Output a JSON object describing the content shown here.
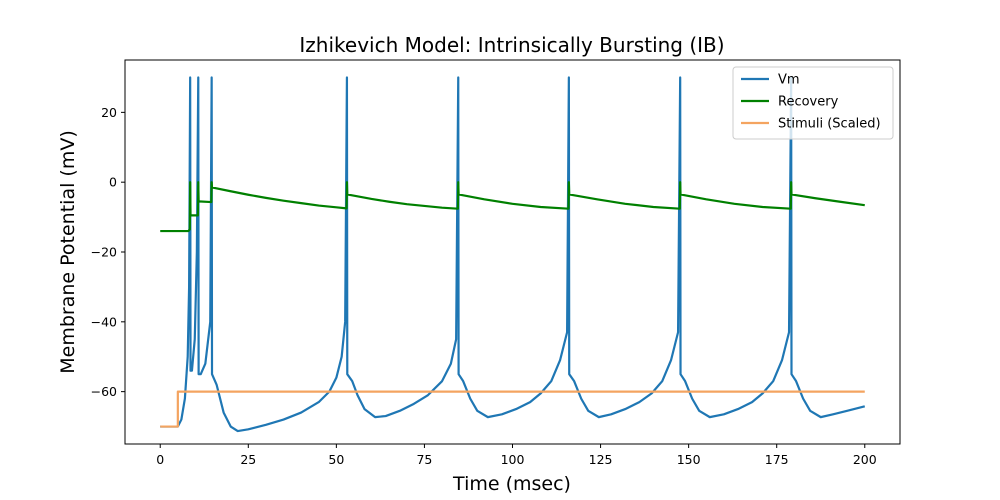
{
  "chart_data": {
    "type": "line",
    "title": "Izhikevich Model: Intrinsically Bursting (IB)",
    "xlabel": "Time (msec)",
    "ylabel": "Membrane Potential (mV)",
    "xlim": [
      -10,
      210
    ],
    "ylim": [
      -75,
      35
    ],
    "xticks": [
      0,
      25,
      50,
      75,
      100,
      125,
      150,
      175,
      200
    ],
    "yticks": [
      -60,
      -40,
      -20,
      0,
      20
    ],
    "grid": false,
    "legend_position": "top-right",
    "series": [
      {
        "name": "Vm",
        "color": "#1f77b4",
        "points": [
          [
            0,
            -70
          ],
          [
            5,
            -70
          ],
          [
            6,
            -68
          ],
          [
            7,
            -62
          ],
          [
            7.8,
            -50
          ],
          [
            8.2,
            -30
          ],
          [
            8.5,
            30
          ],
          [
            8.6,
            -54
          ],
          [
            9,
            -54
          ],
          [
            9.8,
            -45
          ],
          [
            10.4,
            -20
          ],
          [
            10.8,
            30
          ],
          [
            10.9,
            -55
          ],
          [
            11.5,
            -55
          ],
          [
            12.8,
            -52
          ],
          [
            14.2,
            -40
          ],
          [
            14.6,
            30
          ],
          [
            14.7,
            -55
          ],
          [
            16,
            -58
          ],
          [
            18,
            -66
          ],
          [
            20,
            -70
          ],
          [
            22,
            -71.3
          ],
          [
            25,
            -70.8
          ],
          [
            30,
            -69.5
          ],
          [
            35,
            -68
          ],
          [
            40,
            -66
          ],
          [
            45,
            -63
          ],
          [
            48,
            -60
          ],
          [
            50,
            -56
          ],
          [
            51.5,
            -50
          ],
          [
            52.5,
            -40
          ],
          [
            53,
            30
          ],
          [
            53.1,
            -55
          ],
          [
            54.5,
            -57
          ],
          [
            56,
            -61
          ],
          [
            58,
            -65
          ],
          [
            61,
            -67.3
          ],
          [
            64,
            -67
          ],
          [
            68,
            -65.5
          ],
          [
            72,
            -63.5
          ],
          [
            76,
            -61
          ],
          [
            80,
            -57
          ],
          [
            82.5,
            -52
          ],
          [
            84,
            -45
          ],
          [
            84.6,
            30
          ],
          [
            84.7,
            -55
          ],
          [
            86,
            -57
          ],
          [
            88,
            -62
          ],
          [
            90,
            -65.5
          ],
          [
            93,
            -67.3
          ],
          [
            97,
            -66.5
          ],
          [
            101,
            -65
          ],
          [
            105,
            -63
          ],
          [
            108,
            -60.5
          ],
          [
            111,
            -57
          ],
          [
            113.5,
            -51
          ],
          [
            115.5,
            -43
          ],
          [
            116,
            30
          ],
          [
            116.1,
            -55
          ],
          [
            117.5,
            -57
          ],
          [
            119.5,
            -62
          ],
          [
            121.5,
            -65.5
          ],
          [
            124.5,
            -67.3
          ],
          [
            128,
            -66.5
          ],
          [
            132,
            -65
          ],
          [
            136,
            -63
          ],
          [
            139.5,
            -60.5
          ],
          [
            142.5,
            -57
          ],
          [
            145,
            -51
          ],
          [
            147,
            -43
          ],
          [
            147.6,
            30
          ],
          [
            147.7,
            -55
          ],
          [
            149,
            -57
          ],
          [
            151,
            -62
          ],
          [
            153,
            -65.5
          ],
          [
            156,
            -67.3
          ],
          [
            160,
            -66.5
          ],
          [
            164,
            -65
          ],
          [
            168,
            -63
          ],
          [
            171,
            -60.5
          ],
          [
            174,
            -57
          ],
          [
            176.5,
            -51
          ],
          [
            178.5,
            -43
          ],
          [
            179.1,
            30
          ],
          [
            179.2,
            -55
          ],
          [
            180.5,
            -57
          ],
          [
            182.5,
            -62
          ],
          [
            184.5,
            -65.5
          ],
          [
            187.5,
            -67.3
          ],
          [
            191,
            -66.5
          ],
          [
            195,
            -65.5
          ],
          [
            200,
            -64.2
          ]
        ]
      },
      {
        "name": "Recovery",
        "color": "#008000",
        "points": [
          [
            0,
            -14
          ],
          [
            8,
            -14
          ],
          [
            8.4,
            -13.5
          ],
          [
            8.5,
            0
          ],
          [
            8.6,
            -9.5
          ],
          [
            10.7,
            -9.5
          ],
          [
            10.8,
            0
          ],
          [
            10.9,
            -5.5
          ],
          [
            14.5,
            -5.7
          ],
          [
            14.6,
            0
          ],
          [
            14.7,
            -1.5
          ],
          [
            20,
            -2.6
          ],
          [
            25,
            -3.6
          ],
          [
            30,
            -4.5
          ],
          [
            35,
            -5.3
          ],
          [
            40,
            -6
          ],
          [
            45,
            -6.7
          ],
          [
            50,
            -7.2
          ],
          [
            52.9,
            -7.5
          ],
          [
            53,
            0
          ],
          [
            53.1,
            -3.5
          ],
          [
            60,
            -4.8
          ],
          [
            65,
            -5.6
          ],
          [
            70,
            -6.3
          ],
          [
            75,
            -6.8
          ],
          [
            80,
            -7.3
          ],
          [
            84.5,
            -7.6
          ],
          [
            84.6,
            0
          ],
          [
            84.7,
            -3.5
          ],
          [
            92,
            -4.9
          ],
          [
            100,
            -6.2
          ],
          [
            108,
            -7.1
          ],
          [
            115.9,
            -7.6
          ],
          [
            116,
            0
          ],
          [
            116.1,
            -3.5
          ],
          [
            124,
            -4.9
          ],
          [
            132,
            -6.2
          ],
          [
            140,
            -7.1
          ],
          [
            147.5,
            -7.6
          ],
          [
            147.6,
            0
          ],
          [
            147.7,
            -3.5
          ],
          [
            155,
            -4.9
          ],
          [
            163,
            -6.2
          ],
          [
            171,
            -7.1
          ],
          [
            179,
            -7.6
          ],
          [
            179.1,
            0
          ],
          [
            179.2,
            -3.5
          ],
          [
            186,
            -4.6
          ],
          [
            193,
            -5.6
          ],
          [
            200,
            -6.6
          ]
        ]
      },
      {
        "name": "Stimuli (Scaled)",
        "color": "#f4a460",
        "points": [
          [
            0,
            -70
          ],
          [
            5,
            -70
          ],
          [
            5,
            -60
          ],
          [
            200,
            -60
          ]
        ]
      }
    ]
  }
}
